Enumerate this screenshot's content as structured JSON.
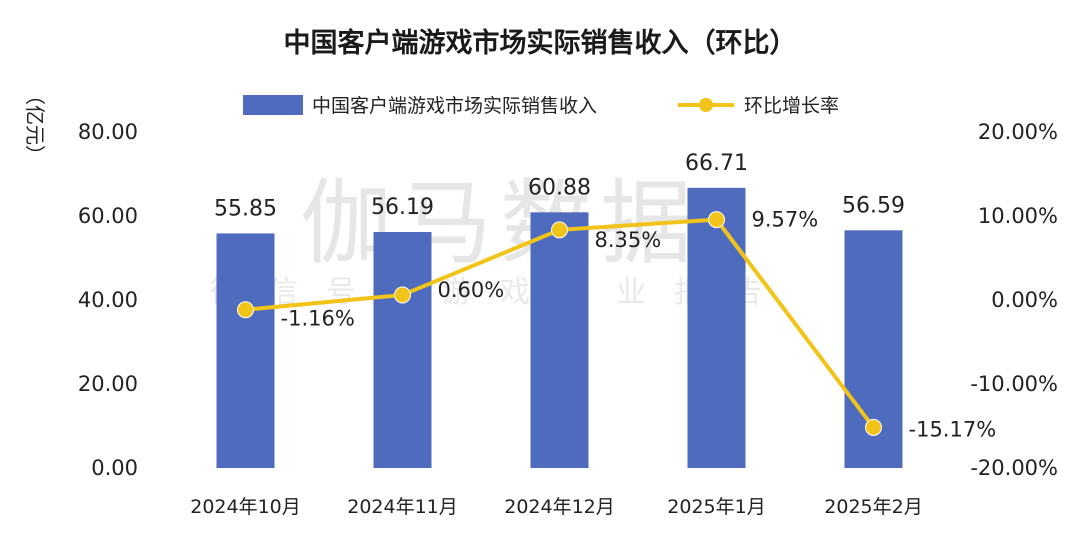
{
  "chart_data": {
    "type": "bar+line",
    "title": "中国客户端游戏市场实际销售收入（环比）",
    "categories": [
      "2024年10月",
      "2024年11月",
      "2024年12月",
      "2025年1月",
      "2025年2月"
    ],
    "series": [
      {
        "name": "中国客户端游戏市场实际销售收入",
        "type": "bar",
        "axis": "left",
        "color": "#4f6bbd",
        "values": [
          55.85,
          56.19,
          60.88,
          66.71,
          56.59
        ],
        "labels": [
          "55.85",
          "56.19",
          "60.88",
          "66.71",
          "56.59"
        ]
      },
      {
        "name": "环比增长率",
        "type": "line",
        "axis": "right",
        "color": "#f2c318",
        "values": [
          -1.16,
          0.6,
          8.35,
          9.57,
          -15.17
        ],
        "labels": [
          "-1.16%",
          "0.60%",
          "8.35%",
          "9.57%",
          "-15.17%"
        ]
      }
    ],
    "left_axis": {
      "unit": "（亿元）",
      "ylim": [
        0,
        80
      ],
      "ticks": [
        0,
        20,
        40,
        60,
        80
      ],
      "tick_labels": [
        "0.00",
        "20.00",
        "40.00",
        "60.00",
        "80.00"
      ]
    },
    "right_axis": {
      "ylim": [
        -20,
        20
      ],
      "ticks": [
        -20,
        -10,
        0,
        10,
        20
      ],
      "tick_labels": [
        "-20.00%",
        "-10.00%",
        "0.00%",
        "10.00%",
        "20.00%"
      ]
    },
    "legend_position": "top-center",
    "grid": false
  },
  "watermark": {
    "main": "伽马数据",
    "sub": "微信号：游戏产业报告"
  }
}
